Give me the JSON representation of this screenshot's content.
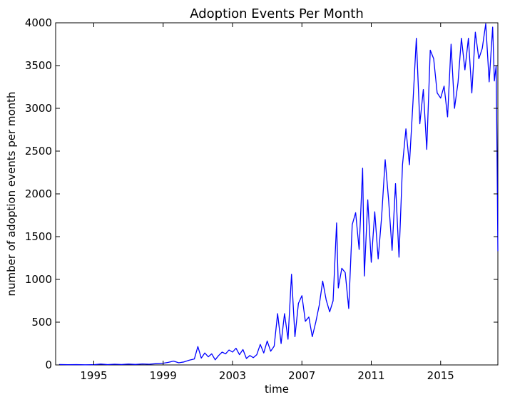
{
  "chart_data": {
    "type": "line",
    "title": "Adoption Events Per Month",
    "xlabel": "time",
    "ylabel": "number of adoption events per month",
    "xlim": [
      1992.8,
      2018.3
    ],
    "ylim": [
      0,
      4000
    ],
    "x_ticks": [
      1995,
      1999,
      2003,
      2007,
      2011,
      2015
    ],
    "x_tick_labels": [
      "1995",
      "1999",
      "2003",
      "2007",
      "2011",
      "2015"
    ],
    "y_ticks": [
      0,
      500,
      1000,
      1500,
      2000,
      2500,
      3000,
      3500,
      4000
    ],
    "y_tick_labels": [
      "0",
      "500",
      "1000",
      "1500",
      "2000",
      "2500",
      "3000",
      "3500",
      "4000"
    ],
    "grid": false,
    "series": [
      {
        "color": "#0000ff",
        "points": [
          [
            1993.0,
            5
          ],
          [
            1993.5,
            3
          ],
          [
            1994.0,
            4
          ],
          [
            1994.5,
            2
          ],
          [
            1995.0,
            3
          ],
          [
            1995.4,
            10
          ],
          [
            1995.8,
            4
          ],
          [
            1996.2,
            8
          ],
          [
            1996.6,
            5
          ],
          [
            1997.0,
            10
          ],
          [
            1997.4,
            6
          ],
          [
            1997.8,
            12
          ],
          [
            1998.2,
            8
          ],
          [
            1998.6,
            15
          ],
          [
            1999.0,
            20
          ],
          [
            1999.3,
            30
          ],
          [
            1999.6,
            45
          ],
          [
            1999.9,
            25
          ],
          [
            2000.2,
            35
          ],
          [
            2000.5,
            55
          ],
          [
            2000.8,
            70
          ],
          [
            2001.0,
            215
          ],
          [
            2001.2,
            80
          ],
          [
            2001.4,
            140
          ],
          [
            2001.6,
            95
          ],
          [
            2001.8,
            130
          ],
          [
            2002.0,
            60
          ],
          [
            2002.2,
            110
          ],
          [
            2002.4,
            150
          ],
          [
            2002.6,
            130
          ],
          [
            2002.8,
            175
          ],
          [
            2003.0,
            150
          ],
          [
            2003.2,
            195
          ],
          [
            2003.4,
            120
          ],
          [
            2003.6,
            180
          ],
          [
            2003.8,
            75
          ],
          [
            2004.0,
            110
          ],
          [
            2004.2,
            85
          ],
          [
            2004.4,
            120
          ],
          [
            2004.6,
            240
          ],
          [
            2004.8,
            140
          ],
          [
            2005.0,
            280
          ],
          [
            2005.2,
            160
          ],
          [
            2005.4,
            220
          ],
          [
            2005.6,
            600
          ],
          [
            2005.8,
            250
          ],
          [
            2006.0,
            600
          ],
          [
            2006.2,
            300
          ],
          [
            2006.4,
            1060
          ],
          [
            2006.6,
            330
          ],
          [
            2006.8,
            720
          ],
          [
            2007.0,
            810
          ],
          [
            2007.2,
            510
          ],
          [
            2007.4,
            560
          ],
          [
            2007.6,
            330
          ],
          [
            2007.8,
            500
          ],
          [
            2008.0,
            700
          ],
          [
            2008.2,
            980
          ],
          [
            2008.4,
            760
          ],
          [
            2008.6,
            620
          ],
          [
            2008.8,
            750
          ],
          [
            2009.0,
            1660
          ],
          [
            2009.1,
            900
          ],
          [
            2009.3,
            1130
          ],
          [
            2009.5,
            1080
          ],
          [
            2009.7,
            660
          ],
          [
            2009.9,
            1640
          ],
          [
            2010.1,
            1780
          ],
          [
            2010.3,
            1350
          ],
          [
            2010.5,
            2300
          ],
          [
            2010.6,
            1040
          ],
          [
            2010.8,
            1930
          ],
          [
            2011.0,
            1200
          ],
          [
            2011.2,
            1790
          ],
          [
            2011.4,
            1240
          ],
          [
            2011.6,
            1740
          ],
          [
            2011.8,
            2400
          ],
          [
            2012.0,
            1930
          ],
          [
            2012.2,
            1340
          ],
          [
            2012.4,
            2120
          ],
          [
            2012.6,
            1260
          ],
          [
            2012.8,
            2340
          ],
          [
            2013.0,
            2760
          ],
          [
            2013.2,
            2340
          ],
          [
            2013.4,
            3060
          ],
          [
            2013.6,
            3820
          ],
          [
            2013.8,
            2820
          ],
          [
            2014.0,
            3220
          ],
          [
            2014.2,
            2520
          ],
          [
            2014.4,
            3680
          ],
          [
            2014.6,
            3580
          ],
          [
            2014.8,
            3180
          ],
          [
            2015.0,
            3120
          ],
          [
            2015.2,
            3260
          ],
          [
            2015.4,
            2900
          ],
          [
            2015.6,
            3750
          ],
          [
            2015.8,
            3000
          ],
          [
            2016.0,
            3300
          ],
          [
            2016.2,
            3820
          ],
          [
            2016.4,
            3450
          ],
          [
            2016.6,
            3820
          ],
          [
            2016.8,
            3180
          ],
          [
            2017.0,
            3890
          ],
          [
            2017.2,
            3580
          ],
          [
            2017.4,
            3700
          ],
          [
            2017.6,
            3990
          ],
          [
            2017.8,
            3310
          ],
          [
            2018.0,
            3950
          ],
          [
            2018.1,
            3320
          ],
          [
            2018.2,
            3500
          ],
          [
            2018.25,
            2500
          ],
          [
            2018.3,
            1330
          ]
        ]
      }
    ]
  }
}
